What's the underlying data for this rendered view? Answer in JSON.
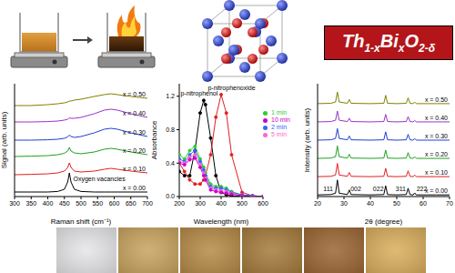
{
  "title": "Th1-xBixO2-δ",
  "chart_data": [
    {
      "type": "line",
      "xlabel": "Raman shift (cm⁻¹)",
      "ylabel": "Signal (arb. units)",
      "x": [
        300,
        350,
        400,
        430,
        450,
        460,
        465,
        470,
        480,
        500,
        540,
        570,
        590,
        610,
        650,
        700
      ],
      "xlim": [
        300,
        700
      ],
      "xticks": [
        300,
        350,
        400,
        450,
        500,
        550,
        600,
        650,
        700
      ],
      "ylim": [
        0,
        6.2
      ],
      "tick_labels": "x",
      "series": [
        {
          "name": "x = 0.00",
          "color": "#000000",
          "values": [
            0.25,
            0.25,
            0.25,
            0.28,
            0.4,
            0.8,
            1.3,
            0.8,
            0.4,
            0.28,
            0.25,
            0.25,
            0.25,
            0.25,
            0.25,
            0.25
          ]
        },
        {
          "name": "x = 0.10",
          "color": "#e02020",
          "values": [
            1.2,
            1.22,
            1.25,
            1.3,
            1.4,
            1.6,
            1.85,
            1.6,
            1.4,
            1.35,
            1.4,
            1.5,
            1.55,
            1.5,
            1.4,
            1.3
          ]
        },
        {
          "name": "x = 0.20",
          "color": "#20a020",
          "values": [
            2.2,
            2.22,
            2.25,
            2.3,
            2.38,
            2.5,
            2.7,
            2.5,
            2.4,
            2.35,
            2.45,
            2.6,
            2.65,
            2.6,
            2.45,
            2.3
          ]
        },
        {
          "name": "x = 0.30",
          "color": "#2040d0",
          "values": [
            3.1,
            3.1,
            3.12,
            3.15,
            3.2,
            3.28,
            3.38,
            3.3,
            3.25,
            3.3,
            3.5,
            3.7,
            3.75,
            3.7,
            3.5,
            3.3
          ]
        },
        {
          "name": "x = 0.40",
          "color": "#9933cc",
          "values": [
            4.1,
            4.1,
            4.12,
            4.15,
            4.2,
            4.25,
            4.32,
            4.3,
            4.3,
            4.35,
            4.55,
            4.75,
            4.8,
            4.75,
            4.55,
            4.35
          ]
        },
        {
          "name": "x = 0.50",
          "color": "#808000",
          "values": [
            5.0,
            5.0,
            5.05,
            5.1,
            5.15,
            5.2,
            5.25,
            5.25,
            5.3,
            5.35,
            5.5,
            5.6,
            5.65,
            5.6,
            5.5,
            5.4
          ]
        }
      ],
      "annotations": [
        {
          "text": "Oxygen vacancies",
          "x": 555,
          "y": 0.95
        }
      ]
    },
    {
      "type": "line",
      "xlabel": "Wavelength (nm)",
      "ylabel": "Absorbance",
      "x": [
        200,
        225,
        250,
        275,
        300,
        317,
        325,
        350,
        375,
        400,
        425,
        450,
        500,
        550,
        600
      ],
      "xlim": [
        200,
        600
      ],
      "xticks": [
        200,
        300,
        400,
        500,
        600
      ],
      "ylim": [
        0,
        1.35
      ],
      "yticks": [
        {
          "value": 0,
          "label": "0.0"
        },
        {
          "value": 0.4,
          "label": "0.4"
        },
        {
          "value": 0.8,
          "label": "0.8"
        },
        {
          "value": 1.2,
          "label": "1.2"
        }
      ],
      "marker": "o",
      "legend": "upper right",
      "series": [
        {
          "color": "#000000",
          "values": [
            0.3,
            0.25,
            0.25,
            0.55,
            1.0,
            1.15,
            1.1,
            0.7,
            0.25,
            0.05,
            0.02,
            0.01,
            0,
            0,
            0
          ]
        },
        {
          "color": "#e02020",
          "values": [
            0.4,
            0.3,
            0.2,
            0.15,
            0.15,
            0.2,
            0.25,
            0.5,
            0.95,
            1.22,
            1.0,
            0.5,
            0.05,
            0.01,
            0
          ]
        },
        {
          "name": "1 min",
          "color": "#33cc33",
          "values": [
            0.5,
            0.45,
            0.55,
            0.6,
            0.45,
            0.35,
            0.28,
            0.15,
            0.12,
            0.12,
            0.1,
            0.06,
            0.02,
            0.01,
            0
          ]
        },
        {
          "name": "2 min",
          "color": "#3366ff",
          "values": [
            0.45,
            0.42,
            0.5,
            0.55,
            0.42,
            0.32,
            0.25,
            0.12,
            0.1,
            0.1,
            0.08,
            0.05,
            0.02,
            0.01,
            0
          ]
        },
        {
          "name": "5 min",
          "color": "#ff66cc",
          "values": [
            0.42,
            0.4,
            0.47,
            0.5,
            0.38,
            0.28,
            0.22,
            0.1,
            0.08,
            0.07,
            0.06,
            0.04,
            0.01,
            0,
            0
          ]
        },
        {
          "name": "10 min",
          "color": "#cc00cc",
          "values": [
            0.4,
            0.38,
            0.44,
            0.46,
            0.35,
            0.25,
            0.2,
            0.08,
            0.06,
            0.05,
            0.04,
            0.03,
            0.01,
            0,
            0
          ]
        }
      ],
      "annotations": [
        {
          "text": "p-nitrophenol",
          "x": 295,
          "y": 1.24
        },
        {
          "text": "p-nitrophenoxide",
          "x": 450,
          "y": 1.3
        }
      ]
    },
    {
      "type": "line",
      "xlabel": "2θ (degree)",
      "ylabel": "Intensity (arb. units)",
      "x": [
        20,
        25,
        26.8,
        27.5,
        28.2,
        31.3,
        32,
        32.7,
        40,
        45.1,
        45.8,
        46.5,
        50,
        53.6,
        54.3,
        55,
        56.2,
        56.8,
        57.4,
        60,
        65,
        70
      ],
      "xlim": [
        20,
        70
      ],
      "xticks": [
        20,
        30,
        40,
        50,
        60,
        70
      ],
      "ylim": [
        0,
        6.8
      ],
      "tick_labels": "x",
      "series": [
        {
          "name": "x = 0.00",
          "color": "#000000",
          "values": [
            0.1,
            0.12,
            0.2,
            1.0,
            0.2,
            0.12,
            0.4,
            0.12,
            0.1,
            0.12,
            0.65,
            0.12,
            0.1,
            0.12,
            0.5,
            0.12,
            0.1,
            0.22,
            0.1,
            0.1,
            0.1,
            0.1
          ]
        },
        {
          "name": "x = 0.10",
          "color": "#e02020",
          "values": [
            1.2,
            1.22,
            1.3,
            2.0,
            1.3,
            1.22,
            1.45,
            1.22,
            1.2,
            1.22,
            1.7,
            1.22,
            1.2,
            1.22,
            1.55,
            1.22,
            1.2,
            1.3,
            1.2,
            1.2,
            1.2,
            1.2
          ]
        },
        {
          "name": "x = 0.20",
          "color": "#20a020",
          "values": [
            2.3,
            2.32,
            2.4,
            3.05,
            2.4,
            2.32,
            2.55,
            2.32,
            2.3,
            2.32,
            2.8,
            2.32,
            2.3,
            2.32,
            2.65,
            2.32,
            2.3,
            2.4,
            2.3,
            2.3,
            2.3,
            2.3
          ]
        },
        {
          "name": "x = 0.30",
          "color": "#2040d0",
          "values": [
            3.4,
            3.42,
            3.5,
            4.1,
            3.5,
            3.42,
            3.65,
            3.42,
            3.4,
            3.42,
            3.9,
            3.42,
            3.4,
            3.42,
            3.75,
            3.42,
            3.4,
            3.5,
            3.4,
            3.4,
            3.4,
            3.4
          ]
        },
        {
          "name": "x = 0.40",
          "color": "#9933cc",
          "values": [
            4.5,
            4.52,
            4.6,
            5.15,
            4.6,
            4.52,
            4.72,
            4.52,
            4.5,
            4.52,
            4.95,
            4.52,
            4.5,
            4.52,
            4.82,
            4.52,
            4.5,
            4.58,
            4.5,
            4.5,
            4.5,
            4.5
          ]
        },
        {
          "name": "x = 0.50",
          "color": "#808000",
          "values": [
            5.6,
            5.62,
            5.7,
            6.3,
            5.7,
            5.62,
            5.85,
            5.62,
            5.6,
            5.62,
            6.1,
            5.62,
            5.6,
            5.62,
            5.95,
            5.62,
            5.6,
            5.7,
            5.6,
            5.6,
            5.6,
            5.6
          ]
        }
      ],
      "annotations": [
        {
          "text": "111",
          "x": 24,
          "y": 0.45
        },
        {
          "text": "002",
          "x": 34.5,
          "y": 0.45
        },
        {
          "text": "022",
          "x": 43,
          "y": 0.45
        },
        {
          "text": "311",
          "x": 51.5,
          "y": 0.45
        },
        {
          "text": "222",
          "x": 59.5,
          "y": 0.45
        }
      ]
    }
  ],
  "photos": {
    "colors": [
      "#e6e6e8",
      "#c8a35e",
      "#b58a46",
      "#a57b3b",
      "#9c6532",
      "#d9ae5c"
    ]
  }
}
